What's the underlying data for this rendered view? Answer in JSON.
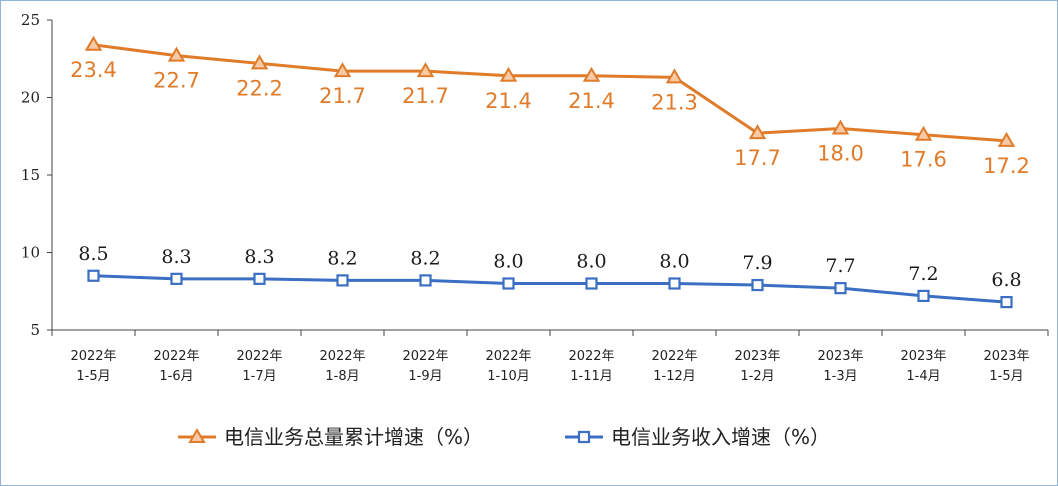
{
  "chart_data": {
    "type": "line",
    "categories": [
      [
        "2022年",
        "1-5月"
      ],
      [
        "2022年",
        "1-6月"
      ],
      [
        "2022年",
        "1-7月"
      ],
      [
        "2022年",
        "1-8月"
      ],
      [
        "2022年",
        "1-9月"
      ],
      [
        "2022年",
        "1-10月"
      ],
      [
        "2022年",
        "1-11月"
      ],
      [
        "2022年",
        "1-12月"
      ],
      [
        "2023年",
        "1-2月"
      ],
      [
        "2023年",
        "1-3月"
      ],
      [
        "2023年",
        "1-4月"
      ],
      [
        "2023年",
        "1-5月"
      ]
    ],
    "ylim": [
      5,
      25
    ],
    "yticks": [
      5,
      10,
      15,
      20,
      25
    ],
    "grid": false,
    "legend_position": "bottom",
    "series": [
      {
        "name": "电信业务总量累计增速（%）",
        "color": "#e07b2a",
        "marker": "triangle",
        "values": [
          23.4,
          22.7,
          22.2,
          21.7,
          21.7,
          21.4,
          21.4,
          21.3,
          17.7,
          18.0,
          17.6,
          17.2
        ]
      },
      {
        "name": "电信业务收入增速（%）",
        "color": "#3a6fc4",
        "marker": "square",
        "values": [
          8.5,
          8.3,
          8.3,
          8.2,
          8.2,
          8.0,
          8.0,
          8.0,
          7.9,
          7.7,
          7.2,
          6.8
        ]
      }
    ]
  }
}
